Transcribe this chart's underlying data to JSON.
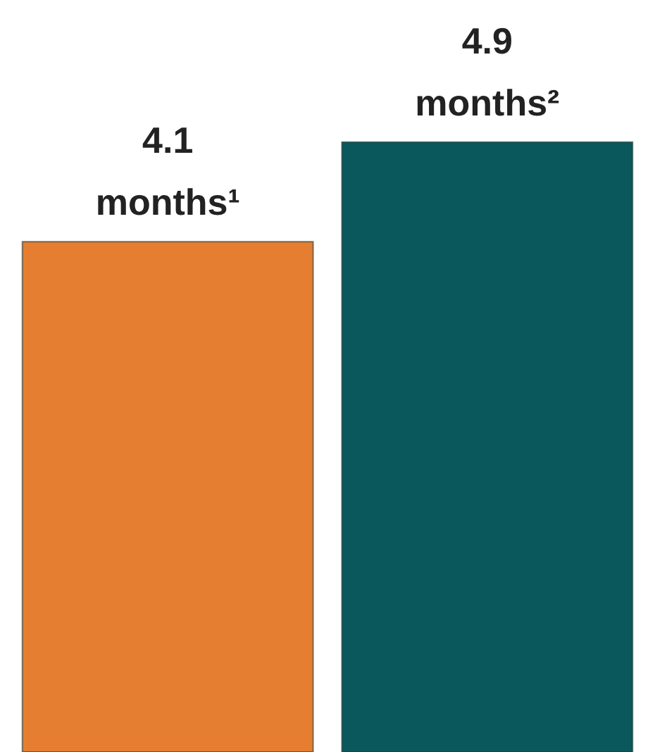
{
  "chart_data": {
    "type": "bar",
    "categories": [
      null,
      null
    ],
    "values": [
      4.1,
      4.9
    ],
    "colors": [
      "#e57e31",
      "#0a585c"
    ],
    "value_labels": [
      "4.1 months¹",
      "4.9 months²"
    ]
  }
}
